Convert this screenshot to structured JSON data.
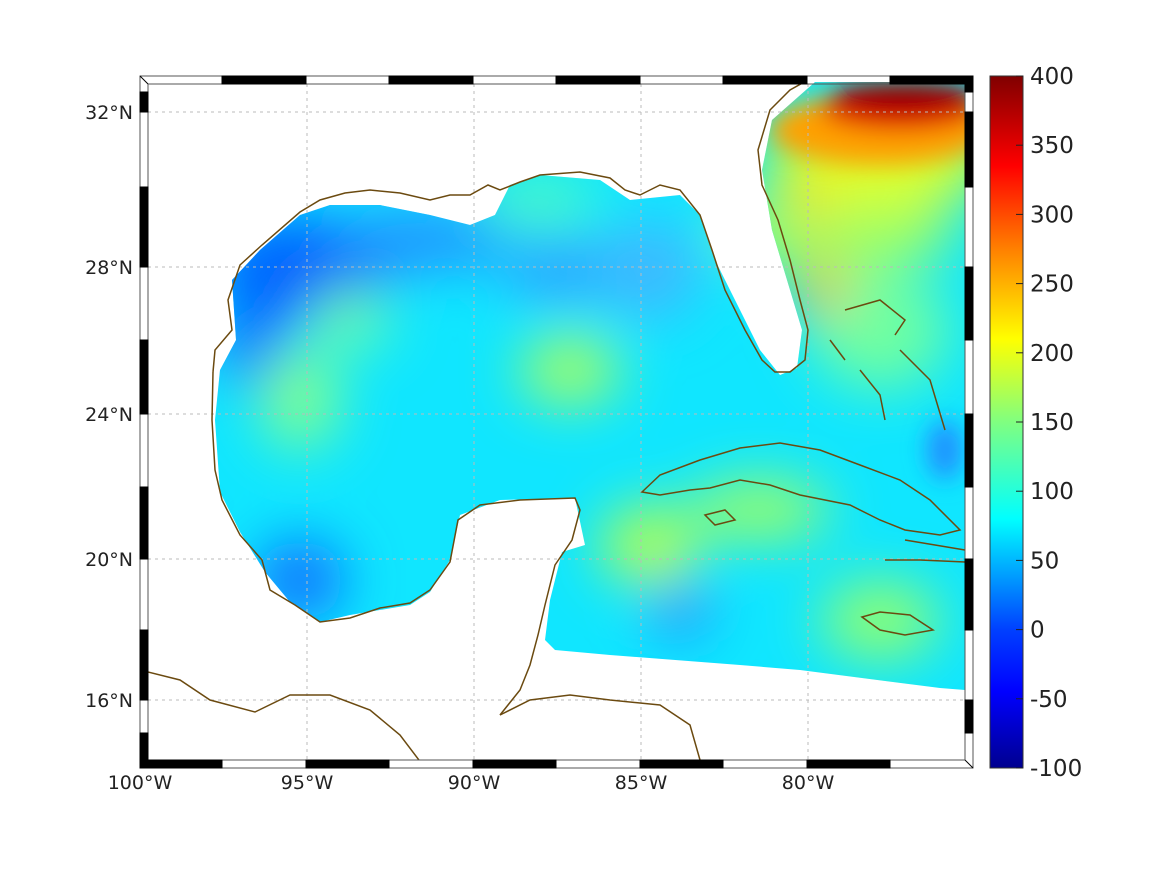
{
  "map": {
    "region": "Gulf of Mexico and Caribbean",
    "lon_range": [
      -100,
      -75
    ],
    "lat_range": [
      14,
      33
    ],
    "x_tick_labels": [
      "100°W",
      "95°W",
      "90°W",
      "85°W",
      "80°W"
    ],
    "y_tick_labels": [
      "32°N",
      "28°N",
      "24°N",
      "20°N",
      "16°N"
    ],
    "grid": true,
    "coastline_color": "#6b4a10"
  },
  "chart_data": {
    "type": "heatmap",
    "colormap": "jet",
    "colorbar": {
      "range": [
        -100,
        400
      ],
      "tick_values": [
        400,
        350,
        300,
        250,
        200,
        150,
        100,
        50,
        0,
        -50,
        -100
      ],
      "tick_labels": [
        "400",
        "350",
        "300",
        "250",
        "200",
        "150",
        "100",
        "50",
        "0",
        "-50",
        "-100"
      ],
      "placement": "right"
    },
    "colors": [
      "#00008f",
      "#0000ff",
      "#0080ff",
      "#00ffff",
      "#80ff80",
      "#ffff00",
      "#ff8000",
      "#ff0000",
      "#800000"
    ]
  }
}
